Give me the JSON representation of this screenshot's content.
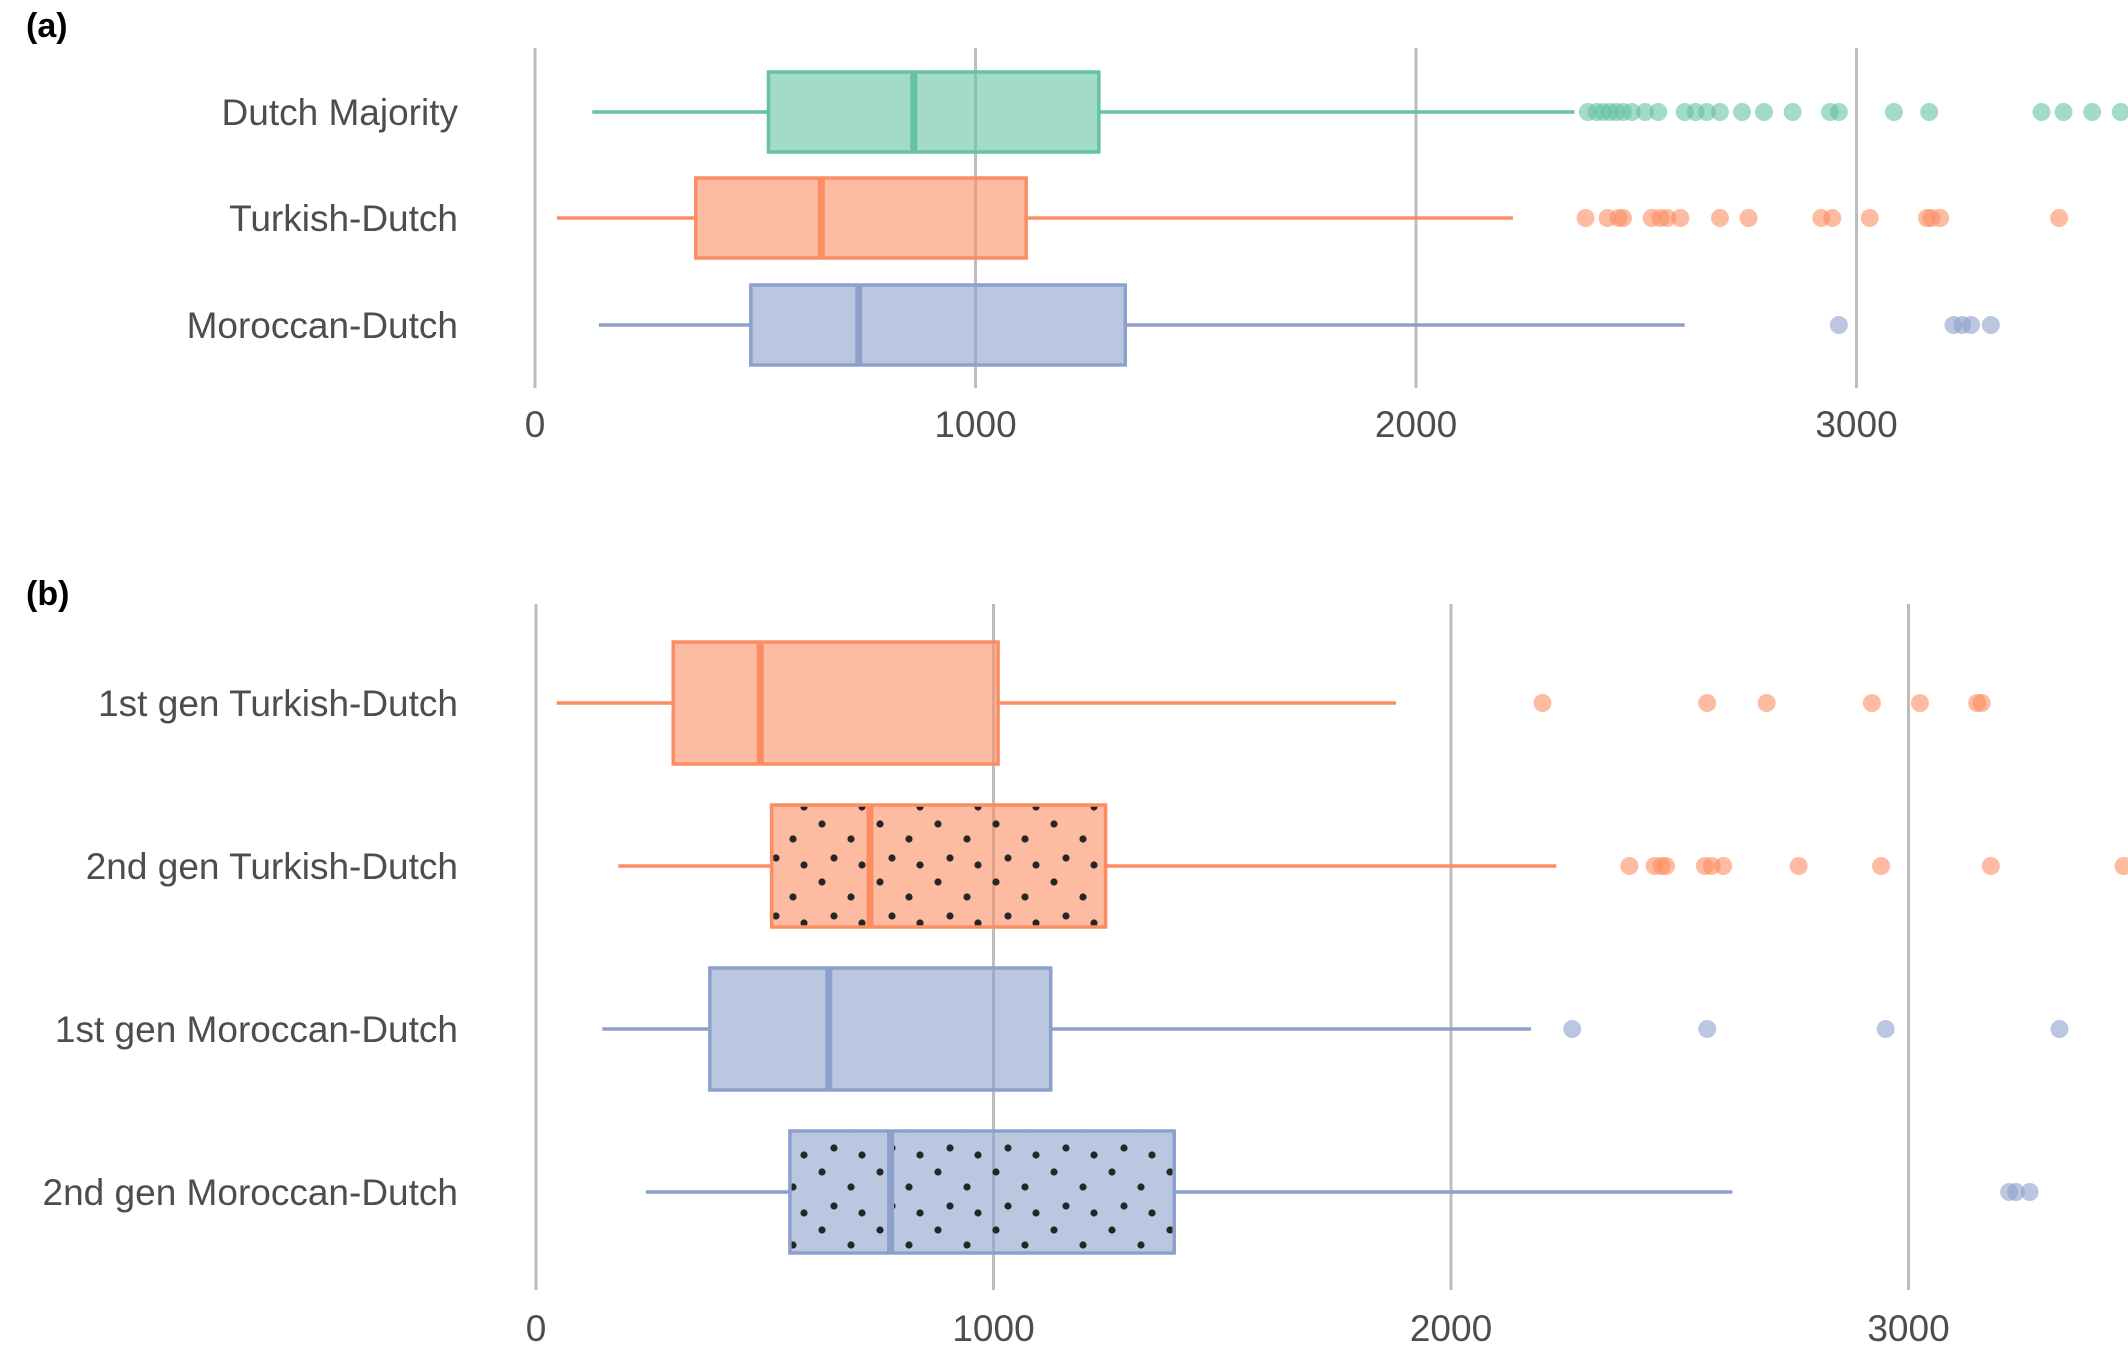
{
  "chart_data": [
    {
      "panel": "(a)",
      "type": "boxplot",
      "orientation": "horizontal",
      "xlim": [
        0,
        3600
      ],
      "xticks": [
        0,
        1000,
        2000,
        3000
      ],
      "grid": true,
      "groups": [
        {
          "label": "Dutch Majority",
          "color": "#66c2a5",
          "pattern": "none",
          "whisker_low": 130,
          "q1": 530,
          "median": 860,
          "q3": 1280,
          "whisker_high": 2360,
          "outliers": [
            2390,
            2410,
            2425,
            2440,
            2455,
            2470,
            2490,
            2520,
            2550,
            2610,
            2635,
            2660,
            2690,
            2740,
            2790,
            2855,
            2940,
            2960,
            3085,
            3165,
            3420,
            3470,
            3535,
            3600
          ]
        },
        {
          "label": "Turkish-Dutch",
          "color": "#fc8d62",
          "pattern": "none",
          "whisker_low": 50,
          "q1": 365,
          "median": 650,
          "q3": 1115,
          "whisker_high": 2220,
          "outliers": [
            2385,
            2435,
            2460,
            2470,
            2535,
            2555,
            2570,
            2600,
            2690,
            2755,
            2920,
            2945,
            3030,
            3160,
            3170,
            3190,
            3460
          ]
        },
        {
          "label": "Moroccan-Dutch",
          "color": "#8da0cb",
          "pattern": "none",
          "whisker_low": 145,
          "q1": 490,
          "median": 735,
          "q3": 1340,
          "whisker_high": 2610,
          "outliers": [
            2960,
            3220,
            3240,
            3260,
            3305
          ]
        }
      ]
    },
    {
      "panel": "(b)",
      "type": "boxplot",
      "orientation": "horizontal",
      "xlim": [
        0,
        3500
      ],
      "xticks": [
        0,
        1000,
        2000,
        3000
      ],
      "grid": true,
      "groups": [
        {
          "label": "1st gen Turkish-Dutch",
          "color": "#fc8d62",
          "pattern": "none",
          "whisker_low": 45,
          "q1": 300,
          "median": 490,
          "q3": 1010,
          "whisker_high": 1880,
          "outliers": [
            2200,
            2560,
            2690,
            2920,
            3025,
            3150,
            3160
          ]
        },
        {
          "label": "2nd gen Turkish-Dutch",
          "color": "#fc8d62",
          "pattern": "dots",
          "whisker_low": 180,
          "q1": 515,
          "median": 730,
          "q3": 1245,
          "whisker_high": 2230,
          "outliers": [
            2390,
            2445,
            2460,
            2470,
            2555,
            2570,
            2595,
            2760,
            2940,
            3180,
            3470
          ]
        },
        {
          "label": "1st gen Moroccan-Dutch",
          "color": "#8da0cb",
          "pattern": "none",
          "whisker_low": 145,
          "q1": 380,
          "median": 640,
          "q3": 1125,
          "whisker_high": 2175,
          "outliers": [
            2265,
            2560,
            2950,
            3330
          ]
        },
        {
          "label": "2nd gen Moroccan-Dutch",
          "color": "#8da0cb",
          "pattern": "dots",
          "whisker_low": 240,
          "q1": 555,
          "median": 775,
          "q3": 1395,
          "whisker_high": 2615,
          "outliers": [
            3220,
            3235,
            3265
          ]
        }
      ]
    }
  ]
}
